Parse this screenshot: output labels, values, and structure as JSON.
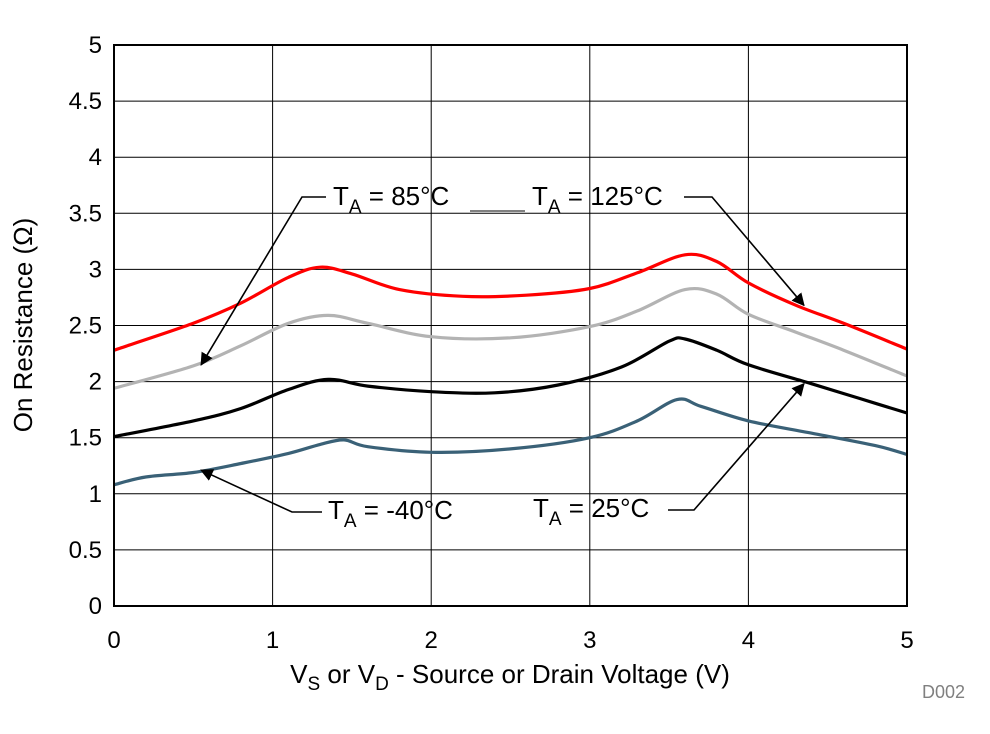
{
  "chart_data": {
    "type": "line",
    "title": "",
    "xlabel": {
      "v": "V",
      "s": "S",
      "or": " or V",
      "d": "D",
      "rest": " - Source or Drain Voltage (V)"
    },
    "ylabel": "On Resistance (Ω)",
    "xlim": [
      0,
      5
    ],
    "ylim": [
      0,
      5
    ],
    "x_ticks": [
      "0",
      "1",
      "2",
      "3",
      "4",
      "5"
    ],
    "y_ticks": [
      "0",
      "0.5",
      "1",
      "1.5",
      "2",
      "2.5",
      "3",
      "3.5",
      "4",
      "4.5",
      "5"
    ],
    "grid": true,
    "figure_code": "D002",
    "series": [
      {
        "name": "TA = 125°C",
        "color": "#ff0000",
        "points": [
          [
            0,
            2.28
          ],
          [
            0.5,
            2.52
          ],
          [
            0.8,
            2.7
          ],
          [
            1.1,
            2.93
          ],
          [
            1.3,
            3.02
          ],
          [
            1.5,
            2.96
          ],
          [
            1.8,
            2.82
          ],
          [
            2.2,
            2.76
          ],
          [
            2.6,
            2.77
          ],
          [
            3.0,
            2.83
          ],
          [
            3.3,
            2.97
          ],
          [
            3.6,
            3.13
          ],
          [
            3.8,
            3.07
          ],
          [
            4.0,
            2.88
          ],
          [
            4.3,
            2.68
          ],
          [
            4.6,
            2.52
          ],
          [
            5.0,
            2.29
          ]
        ]
      },
      {
        "name": "TA = 85°C",
        "color": "#b3b3b3",
        "points": [
          [
            0,
            1.94
          ],
          [
            0.5,
            2.14
          ],
          [
            0.8,
            2.32
          ],
          [
            1.1,
            2.52
          ],
          [
            1.35,
            2.59
          ],
          [
            1.6,
            2.52
          ],
          [
            2.0,
            2.4
          ],
          [
            2.5,
            2.39
          ],
          [
            3.0,
            2.49
          ],
          [
            3.3,
            2.63
          ],
          [
            3.6,
            2.82
          ],
          [
            3.8,
            2.78
          ],
          [
            4.0,
            2.6
          ],
          [
            4.3,
            2.44
          ],
          [
            4.6,
            2.28
          ],
          [
            5.0,
            2.05
          ]
        ]
      },
      {
        "name": "TA = 25°C",
        "color": "#000000",
        "points": [
          [
            0,
            1.51
          ],
          [
            0.5,
            1.65
          ],
          [
            0.8,
            1.76
          ],
          [
            1.1,
            1.93
          ],
          [
            1.35,
            2.02
          ],
          [
            1.6,
            1.96
          ],
          [
            2.0,
            1.91
          ],
          [
            2.4,
            1.9
          ],
          [
            2.8,
            1.97
          ],
          [
            3.2,
            2.13
          ],
          [
            3.5,
            2.36
          ],
          [
            3.6,
            2.38
          ],
          [
            3.8,
            2.28
          ],
          [
            4.0,
            2.15
          ],
          [
            4.4,
            1.98
          ],
          [
            4.7,
            1.85
          ],
          [
            5.0,
            1.72
          ]
        ]
      },
      {
        "name": "TA = -40°C",
        "color": "#3a6177",
        "points": [
          [
            0,
            1.08
          ],
          [
            0.2,
            1.15
          ],
          [
            0.5,
            1.19
          ],
          [
            0.8,
            1.27
          ],
          [
            1.1,
            1.36
          ],
          [
            1.3,
            1.44
          ],
          [
            1.45,
            1.48
          ],
          [
            1.6,
            1.42
          ],
          [
            2.0,
            1.37
          ],
          [
            2.5,
            1.4
          ],
          [
            3.0,
            1.5
          ],
          [
            3.3,
            1.65
          ],
          [
            3.55,
            1.84
          ],
          [
            3.7,
            1.78
          ],
          [
            4.0,
            1.65
          ],
          [
            4.4,
            1.54
          ],
          [
            4.8,
            1.43
          ],
          [
            5.0,
            1.35
          ]
        ]
      }
    ],
    "annotations": [
      {
        "prefix": "T",
        "sub": "A",
        "suffix": " = 85°C",
        "arrow_to": [
          0.55,
          2.15
        ]
      },
      {
        "prefix": "T",
        "sub": "A",
        "suffix": " = 125°C",
        "arrow_to": [
          4.35,
          2.68
        ]
      },
      {
        "prefix": "T",
        "sub": "A",
        "suffix": " = -40°C",
        "arrow_to": [
          0.55,
          1.21
        ]
      },
      {
        "prefix": "T",
        "sub": "A",
        "suffix": " = 25°C",
        "arrow_to": [
          4.35,
          1.98
        ]
      }
    ]
  }
}
